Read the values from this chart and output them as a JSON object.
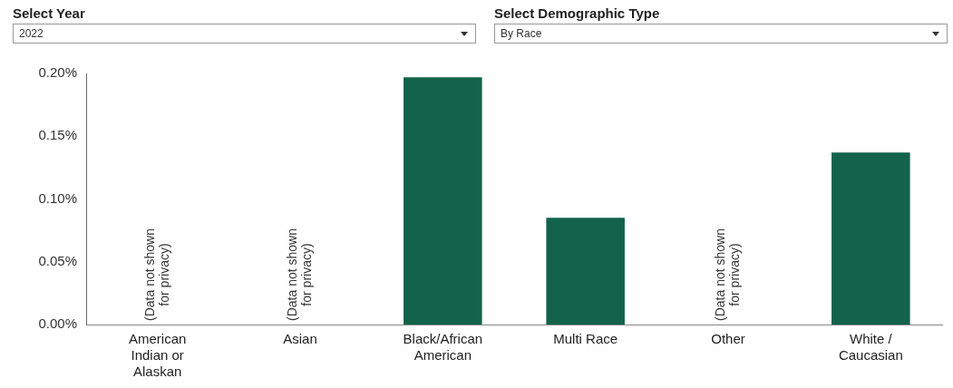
{
  "chart_data": {
    "type": "bar",
    "categories": [
      "American Indian or Alaskan",
      "Asian",
      "Black/African American",
      "Multi Race",
      "Other",
      "White / Caucasian"
    ],
    "values": [
      null,
      null,
      0.197,
      0.085,
      null,
      0.137
    ],
    "color": "#126349",
    "ylim": [
      0,
      0.2
    ],
    "yticks": [
      {
        "value": 0,
        "label": "0.00%"
      },
      {
        "value": 0.05,
        "label": "0.05%"
      },
      {
        "value": 0.1,
        "label": "0.10%"
      },
      {
        "value": 0.15,
        "label": "0.15%"
      },
      {
        "value": 0.2,
        "label": "0.20%"
      }
    ],
    "grid": false,
    "legend": false,
    "annotations": [
      "Select Year",
      "2022",
      "Select Demographic Type",
      "By Race",
      "(Data not shown for privacy)",
      "(Data not shown for privacy)",
      "(Data not shown for privacy)"
    ]
  }
}
